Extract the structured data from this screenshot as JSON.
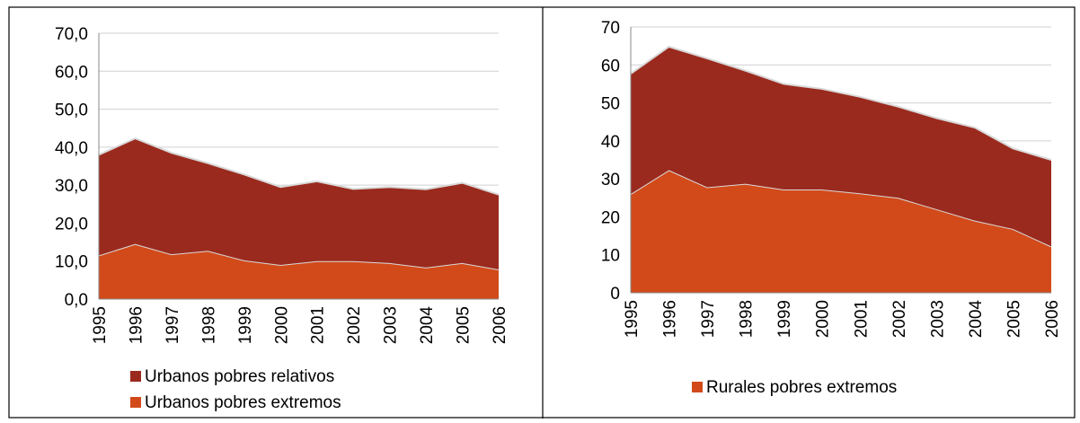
{
  "chart_data": [
    {
      "type": "stacked-area",
      "categories": [
        "1995",
        "1996",
        "1997",
        "1998",
        "1999",
        "2000",
        "2001",
        "2002",
        "2003",
        "2004",
        "2005",
        "2006"
      ],
      "series": [
        {
          "name": "Urbanos pobres extremos",
          "color": "#d24a1a",
          "values": [
            11.5,
            14.5,
            11.8,
            12.7,
            10.2,
            9.0,
            10.0,
            10.0,
            9.5,
            8.3,
            9.5,
            7.8
          ]
        },
        {
          "name": "Urbanos pobres relativos",
          "color": "#9b2a1e",
          "values": [
            26.5,
            27.8,
            26.7,
            23.1,
            22.6,
            20.5,
            21.0,
            19.0,
            20.0,
            20.6,
            21.1,
            19.7
          ]
        }
      ],
      "ylim": [
        0,
        70
      ],
      "yticks": [
        {
          "value": 0,
          "label": "0,0"
        },
        {
          "value": 10,
          "label": "10,0"
        },
        {
          "value": 20,
          "label": "20,0"
        },
        {
          "value": 30,
          "label": "30,0"
        },
        {
          "value": 40,
          "label": "40,0"
        },
        {
          "value": 50,
          "label": "50,0"
        },
        {
          "value": 60,
          "label": "60,0"
        },
        {
          "value": 70,
          "label": "70,0"
        }
      ],
      "grid": true
    },
    {
      "type": "stacked-area",
      "categories": [
        "1995",
        "1996",
        "1997",
        "1998",
        "1999",
        "2000",
        "2001",
        "2002",
        "2003",
        "2004",
        "2005",
        "2006"
      ],
      "series": [
        {
          "name": "Rurales pobres extremos",
          "color": "#d24a1a",
          "values": [
            26.0,
            32.3,
            27.8,
            28.7,
            27.2,
            27.2,
            26.2,
            25.0,
            22.0,
            19.0,
            16.8,
            12.2
          ]
        },
        {
          "color": "#9b2a1e",
          "values": [
            31.7,
            32.5,
            33.9,
            29.8,
            27.8,
            26.5,
            25.4,
            24.0,
            24.0,
            24.5,
            21.2,
            22.8
          ]
        }
      ],
      "ylim": [
        0,
        70
      ],
      "yticks": [
        0,
        10,
        20,
        30,
        40,
        50,
        60,
        70
      ],
      "grid": true
    }
  ]
}
